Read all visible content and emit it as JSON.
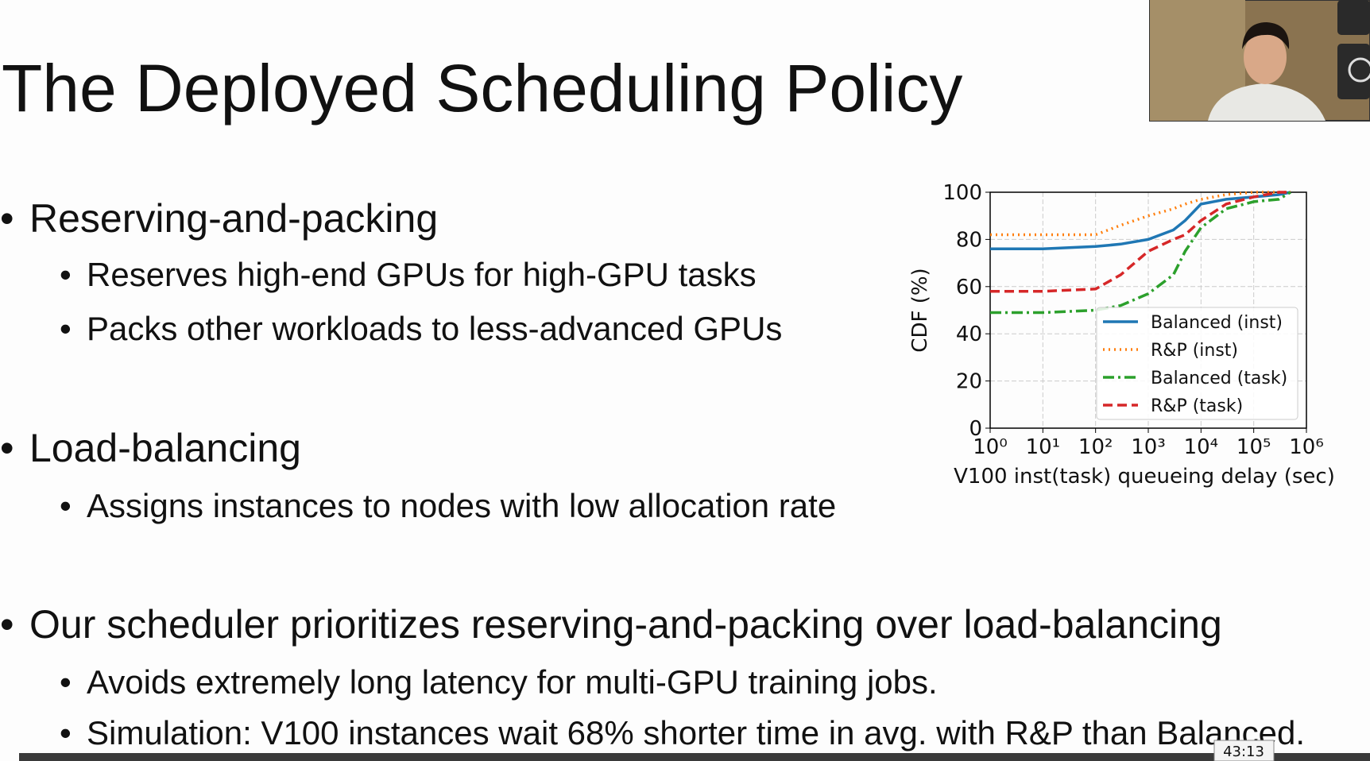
{
  "slide": {
    "title": "The Deployed Scheduling Policy",
    "bullets": [
      {
        "text": "Reserving-and-packing",
        "sub": [
          "Reserves high-end GPUs for high-GPU tasks",
          "Packs other workloads to less-advanced GPUs"
        ]
      },
      {
        "text": "Load-balancing",
        "sub": [
          "Assigns instances to nodes with low allocation rate"
        ]
      },
      {
        "text": "Our scheduler prioritizes reserving-and-packing over load-balancing",
        "sub": [
          "Avoids extremely long latency for multi-GPU training jobs.",
          "Simulation: V100 instances wait 68% shorter time in avg. with R&P than Balanced."
        ]
      }
    ]
  },
  "player": {
    "time": "43:13"
  },
  "chart_data": {
    "type": "line",
    "xlabel": "V100 inst(task) queueing delay (sec)",
    "ylabel": "CDF (%)",
    "xscale": "log",
    "grid": true,
    "legend": "lower right",
    "x": [
      1,
      10,
      100,
      300,
      1000,
      3000,
      5000,
      10000,
      30000,
      100000,
      300000,
      500000
    ],
    "xlim": [
      1,
      1000000
    ],
    "xticks": [
      {
        "value": 1,
        "label": "10⁰"
      },
      {
        "value": 10,
        "label": "10¹"
      },
      {
        "value": 100,
        "label": "10²"
      },
      {
        "value": 1000,
        "label": "10³"
      },
      {
        "value": 10000,
        "label": "10⁴"
      },
      {
        "value": 100000,
        "label": "10⁵"
      },
      {
        "value": 1000000,
        "label": "10⁶"
      }
    ],
    "ylim": [
      0,
      100
    ],
    "yticks": [
      0,
      20,
      40,
      60,
      80,
      100
    ],
    "series": [
      {
        "name": "Balanced (inst)",
        "color": "#1f77b4",
        "dash": "solid",
        "values": [
          76,
          76,
          77,
          78,
          80,
          84,
          88,
          95,
          97,
          98,
          99,
          100
        ]
      },
      {
        "name": "R&P (inst)",
        "color": "#ff7f0e",
        "dash": "dotted",
        "values": [
          82,
          82,
          82,
          86,
          90,
          93,
          95,
          97,
          99,
          100,
          100,
          100
        ]
      },
      {
        "name": "Balanced (task)",
        "color": "#2ca02c",
        "dash": "dashdot",
        "values": [
          49,
          49,
          50,
          52,
          57,
          65,
          75,
          85,
          93,
          96,
          97,
          100
        ]
      },
      {
        "name": "R&P (task)",
        "color": "#d62728",
        "dash": "dashed",
        "values": [
          58,
          58,
          59,
          65,
          75,
          80,
          82,
          88,
          95,
          98,
          100,
          100
        ]
      }
    ]
  }
}
